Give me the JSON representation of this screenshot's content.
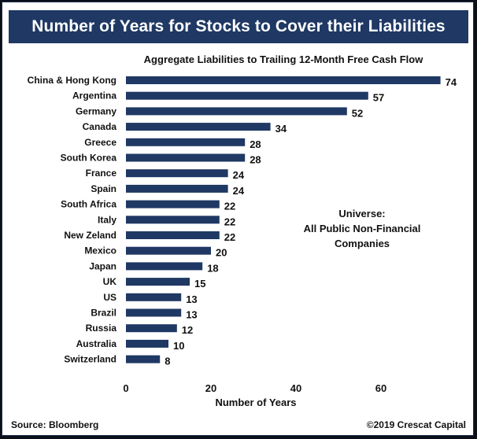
{
  "header": {
    "title": "Number of Years for Stocks to Cover their Liabilities"
  },
  "annotation": {
    "line1": "Universe:",
    "line2": "All Public Non-Financial",
    "line3": "Companies"
  },
  "footer": {
    "source": "Source: Bloomberg",
    "copyright": "©2019 Crescat Capital"
  },
  "colors": {
    "bar": "#1f3864",
    "header_bg": "#1f3864"
  },
  "chart_data": {
    "type": "bar",
    "orientation": "horizontal",
    "title": "Aggregate Liabilities to Trailing 12-Month Free Cash Flow",
    "xlabel": "Number of Years",
    "ylabel": "",
    "xlim": [
      0,
      74
    ],
    "xticks": [
      0,
      20,
      40,
      60
    ],
    "grid": false,
    "categories": [
      "China & Hong Kong",
      "Argentina",
      "Germany",
      "Canada",
      "Greece",
      "South Korea",
      "France",
      "Spain",
      "South Africa",
      "Italy",
      "New Zeland",
      "Mexico",
      "Japan",
      "UK",
      "US",
      "Brazil",
      "Russia",
      "Australia",
      "Switzerland"
    ],
    "values": [
      74,
      57,
      52,
      34,
      28,
      28,
      24,
      24,
      22,
      22,
      22,
      20,
      18,
      15,
      13,
      13,
      12,
      10,
      8
    ]
  }
}
